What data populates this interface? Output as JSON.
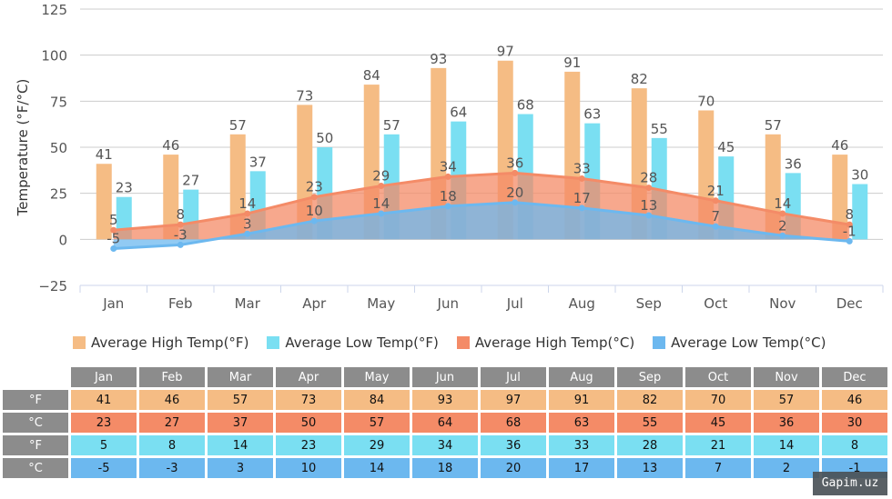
{
  "chart_data": {
    "type": "bar",
    "ylabel": "Temperature (°F/°C)",
    "ylim": [
      -25,
      125
    ],
    "yticks": [
      -25,
      0,
      25,
      50,
      75,
      100,
      125
    ],
    "grid": true,
    "legend_placement": "bottom",
    "categories": [
      "Jan",
      "Feb",
      "Mar",
      "Apr",
      "May",
      "Jun",
      "Jul",
      "Aug",
      "Sep",
      "Oct",
      "Nov",
      "Dec"
    ],
    "series": [
      {
        "name": "Average High Temp(°F)",
        "type": "bar",
        "color": "#f5bc84",
        "values": [
          41,
          46,
          57,
          73,
          84,
          93,
          97,
          91,
          82,
          70,
          57,
          46
        ]
      },
      {
        "name": "Average Low Temp(°F)",
        "type": "bar",
        "color": "#7adff2",
        "values": [
          23,
          27,
          37,
          50,
          57,
          64,
          68,
          63,
          55,
          45,
          36,
          30
        ]
      },
      {
        "name": "Average High Temp(°C)",
        "type": "area",
        "color": "#f48b67",
        "values": [
          5,
          8,
          14,
          23,
          29,
          34,
          36,
          33,
          28,
          21,
          14,
          8
        ]
      },
      {
        "name": "Average Low Temp(°C)",
        "type": "area",
        "color": "#6cb8ef",
        "values": [
          -5,
          -3,
          3,
          10,
          14,
          18,
          20,
          17,
          13,
          7,
          2,
          -1
        ]
      }
    ]
  },
  "table": {
    "row_labels": [
      "°F",
      "°C",
      "°F",
      "°C"
    ],
    "row_colors": [
      "#f5bc84",
      "#f48b67",
      "#7adff2",
      "#6cb8ef"
    ]
  },
  "watermark": "Gapim.uz"
}
